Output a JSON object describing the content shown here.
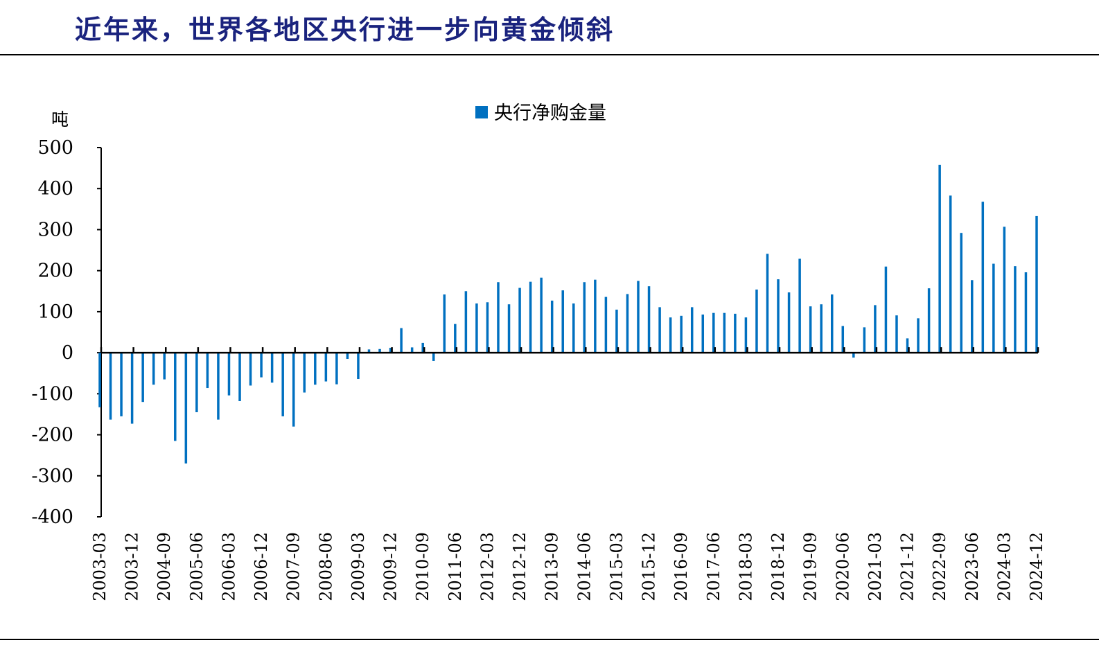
{
  "page": {
    "title": "近年来，世界各地区央行进一步向黄金倾斜"
  },
  "chart_data": {
    "type": "bar",
    "title": "",
    "unit": "吨",
    "xlabel": "",
    "ylabel": "吨",
    "ylim": [
      -400,
      500
    ],
    "yticks": [
      500,
      400,
      300,
      200,
      100,
      0,
      -100,
      -200,
      -300,
      -400
    ],
    "grid": false,
    "legend_position": "top-center",
    "bar_color": "#0070C0",
    "series": [
      {
        "name": "央行净购金量",
        "values": [
          -133,
          -163,
          -155,
          -173,
          -120,
          -78,
          -65,
          -215,
          -270,
          -145,
          -86,
          -163,
          -104,
          -118,
          -80,
          -60,
          -73,
          -155,
          -180,
          -97,
          -78,
          -70,
          -77,
          -15,
          -64,
          8,
          9,
          12,
          60,
          13,
          24,
          -20,
          142,
          70,
          150,
          120,
          123,
          172,
          118,
          158,
          173,
          183,
          127,
          152,
          120,
          172,
          178,
          136,
          105,
          143,
          175,
          162,
          111,
          86,
          90,
          111,
          93,
          97,
          97,
          95,
          86,
          154,
          241,
          179,
          147,
          229,
          113,
          118,
          142,
          65,
          -12,
          62,
          116,
          210,
          91,
          35,
          84,
          157,
          458,
          383,
          292,
          177,
          368,
          217,
          307,
          211,
          196,
          333
        ]
      }
    ],
    "x_tick_labels": [
      "2003-03",
      "2003-12",
      "2004-09",
      "2005-06",
      "2006-03",
      "2006-12",
      "2007-09",
      "2008-06",
      "2009-03",
      "2009-12",
      "2010-09",
      "2011-06",
      "2012-03",
      "2012-12",
      "2013-09",
      "2014-06",
      "2015-03",
      "2015-12",
      "2016-09",
      "2017-06",
      "2018-03",
      "2018-12",
      "2019-09",
      "2020-06",
      "2021-03",
      "2021-12",
      "2022-09",
      "2023-06",
      "2024-03",
      "2024-12"
    ]
  }
}
